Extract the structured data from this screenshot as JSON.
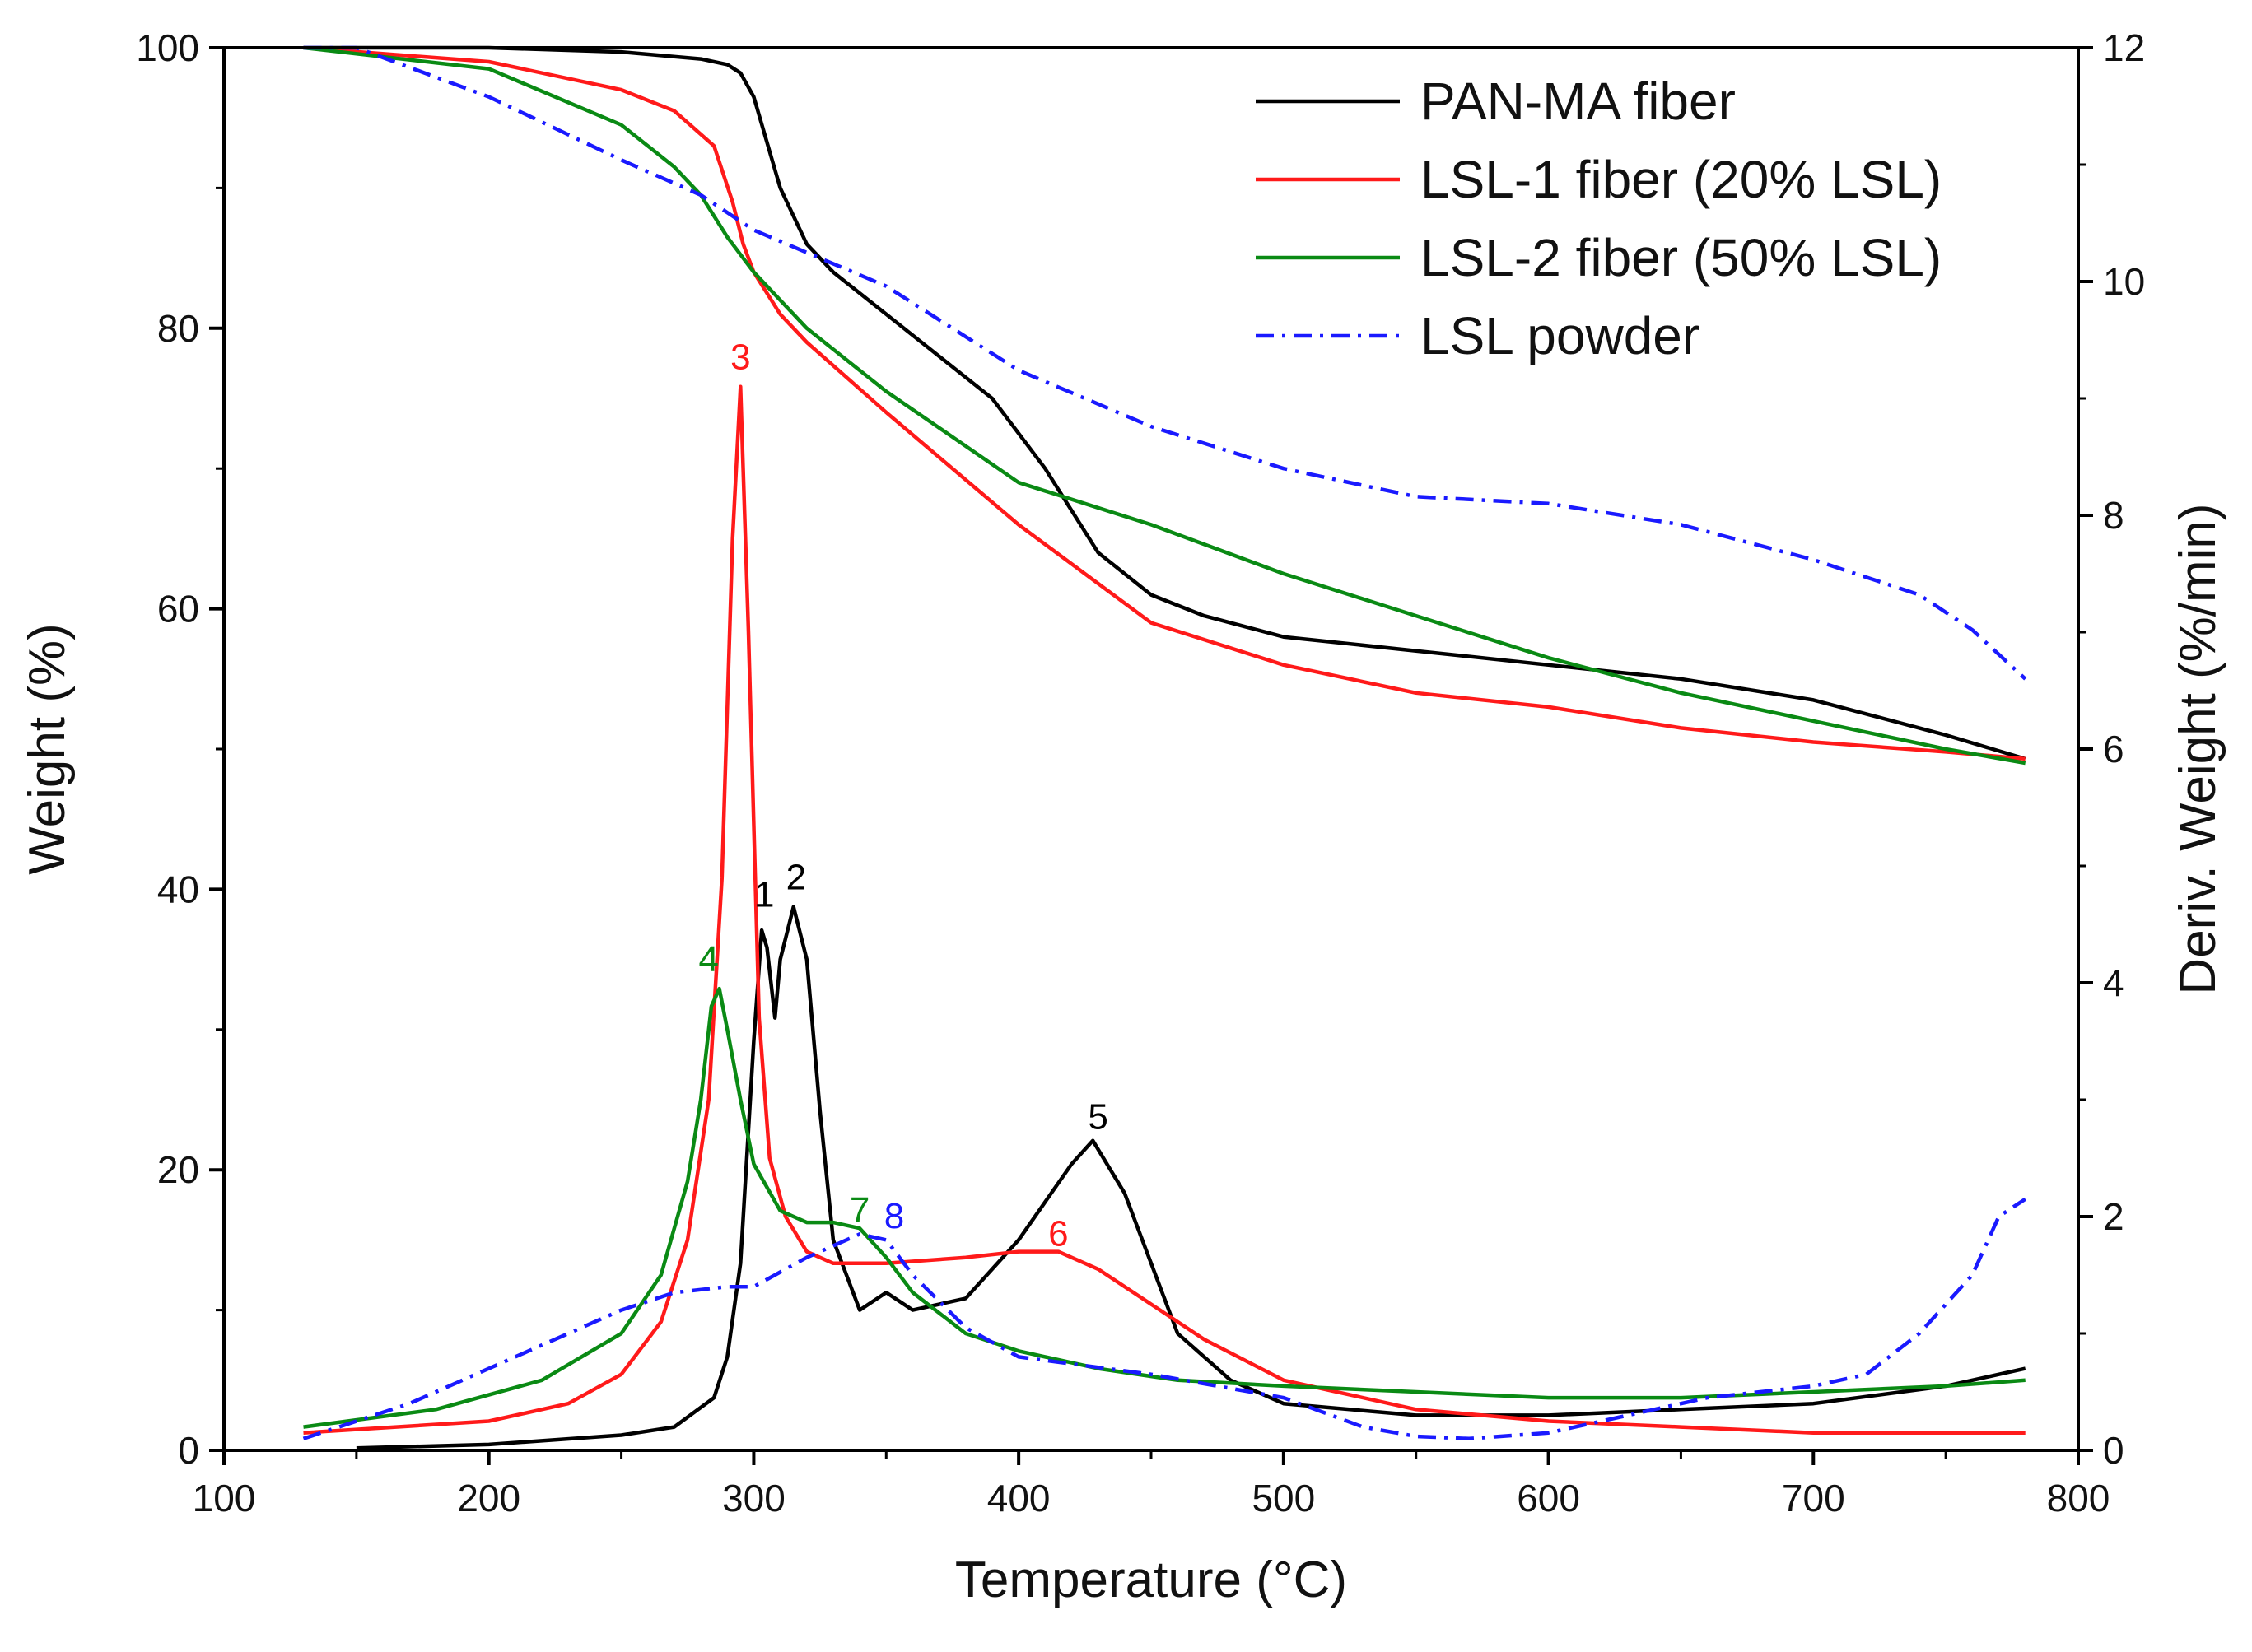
{
  "colors": {
    "pan_ma": "#000000",
    "lsl1": "#ff1a1a",
    "lsl2": "#0a8a14",
    "lsl_powder": "#1a1aff"
  },
  "chart_data": {
    "type": "line",
    "title": "",
    "xlabel": "Temperature (°C)",
    "ylabel_left": "Weight (%)",
    "ylabel_right": "Deriv. Weight (%/min)",
    "xlim": [
      100,
      800
    ],
    "ylim_left": [
      0,
      100
    ],
    "ylim_right": [
      0,
      12
    ],
    "x_ticks": [
      "100",
      "200",
      "300",
      "400",
      "500",
      "600",
      "700",
      "800"
    ],
    "y_left_ticks": [
      "0",
      "20",
      "40",
      "60",
      "80",
      "100"
    ],
    "y_right_ticks": [
      "0",
      "2",
      "4",
      "6",
      "8",
      "10",
      "12"
    ],
    "grid": false,
    "legend_position": "top-right",
    "legend": [
      {
        "key": "pan_ma",
        "label": "PAN-MA fiber",
        "style": "solid"
      },
      {
        "key": "lsl1",
        "label": "LSL-1 fiber (20% LSL)",
        "style": "solid"
      },
      {
        "key": "lsl2",
        "label": "LSL-2 fiber (50% LSL)",
        "style": "solid"
      },
      {
        "key": "lsl_powder",
        "label": "LSL powder",
        "style": "dashdot"
      }
    ],
    "weight_series": [
      {
        "key": "pan_ma",
        "axis": "left",
        "style": "solid",
        "x": [
          130,
          200,
          250,
          280,
          290,
          295,
          300,
          310,
          320,
          330,
          350,
          370,
          390,
          410,
          430,
          450,
          470,
          500,
          550,
          600,
          650,
          700,
          750,
          780
        ],
        "y": [
          100,
          100,
          99.7,
          99.2,
          98.8,
          98.2,
          96.5,
          90,
          86,
          84,
          81,
          78,
          75,
          70,
          64,
          61,
          59.5,
          58,
          57,
          56,
          55,
          53.5,
          51,
          49.3
        ]
      },
      {
        "key": "lsl1",
        "axis": "left",
        "style": "solid",
        "x": [
          130,
          200,
          250,
          270,
          285,
          292,
          296,
          300,
          310,
          320,
          350,
          400,
          450,
          500,
          550,
          600,
          650,
          700,
          750,
          780
        ],
        "y": [
          100,
          99,
          97,
          95.5,
          93,
          89,
          86,
          84,
          81,
          79,
          74,
          66,
          59,
          56,
          54,
          53,
          51.5,
          50.5,
          49.8,
          49.3
        ]
      },
      {
        "key": "lsl2",
        "axis": "left",
        "style": "solid",
        "x": [
          130,
          200,
          250,
          270,
          280,
          290,
          300,
          320,
          350,
          400,
          450,
          500,
          550,
          600,
          650,
          700,
          750,
          780
        ],
        "y": [
          100,
          98.5,
          94.5,
          91.5,
          89.5,
          86.5,
          84,
          80,
          75.5,
          69,
          66,
          62.5,
          59.5,
          56.5,
          54,
          52,
          50,
          49
        ]
      },
      {
        "key": "lsl_powder",
        "axis": "left",
        "style": "dashdot",
        "x": [
          130,
          150,
          200,
          250,
          280,
          300,
          350,
          400,
          450,
          500,
          550,
          600,
          650,
          700,
          740,
          760,
          780
        ],
        "y": [
          100,
          100,
          96.5,
          92,
          89.5,
          87,
          83,
          77,
          73,
          70,
          68,
          67.5,
          66,
          63.5,
          61,
          58.5,
          55
        ]
      }
    ],
    "derivative_series": [
      {
        "key": "pan_ma",
        "axis": "right",
        "style": "solid",
        "x": [
          150,
          200,
          250,
          270,
          285,
          290,
          295,
          300,
          303,
          305,
          308,
          310,
          315,
          320,
          325,
          330,
          340,
          350,
          360,
          380,
          400,
          420,
          428,
          440,
          460,
          480,
          500,
          550,
          600,
          650,
          700,
          750,
          780
        ],
        "y": [
          0.02,
          0.05,
          0.13,
          0.2,
          0.45,
          0.8,
          1.6,
          3.5,
          4.45,
          4.3,
          3.7,
          4.2,
          4.65,
          4.2,
          2.9,
          1.8,
          1.2,
          1.35,
          1.2,
          1.3,
          1.8,
          2.45,
          2.65,
          2.2,
          1.0,
          0.6,
          0.4,
          0.3,
          0.3,
          0.35,
          0.4,
          0.55,
          0.7
        ]
      },
      {
        "key": "lsl1",
        "axis": "right",
        "style": "solid",
        "x": [
          130,
          200,
          230,
          250,
          265,
          275,
          283,
          288,
          292,
          295,
          298,
          302,
          306,
          312,
          320,
          330,
          350,
          380,
          400,
          415,
          430,
          450,
          470,
          500,
          550,
          600,
          650,
          700,
          780
        ],
        "y": [
          0.15,
          0.25,
          0.4,
          0.65,
          1.1,
          1.8,
          3.0,
          4.9,
          7.8,
          9.1,
          7.0,
          3.7,
          2.5,
          2.0,
          1.7,
          1.6,
          1.6,
          1.65,
          1.7,
          1.7,
          1.55,
          1.25,
          0.95,
          0.6,
          0.35,
          0.25,
          0.2,
          0.15,
          0.15
        ]
      },
      {
        "key": "lsl2",
        "axis": "right",
        "style": "solid",
        "x": [
          130,
          180,
          220,
          250,
          265,
          275,
          280,
          284,
          287,
          290,
          295,
          300,
          310,
          320,
          330,
          340,
          350,
          360,
          380,
          400,
          430,
          460,
          500,
          550,
          600,
          650,
          700,
          750,
          780
        ],
        "y": [
          0.2,
          0.35,
          0.6,
          1.0,
          1.5,
          2.3,
          3.0,
          3.8,
          3.95,
          3.6,
          3.0,
          2.45,
          2.05,
          1.95,
          1.95,
          1.9,
          1.65,
          1.35,
          1.0,
          0.85,
          0.7,
          0.6,
          0.55,
          0.5,
          0.45,
          0.45,
          0.5,
          0.55,
          0.6
        ]
      },
      {
        "key": "lsl_powder",
        "axis": "right",
        "style": "dashdot",
        "x": [
          130,
          170,
          200,
          230,
          250,
          270,
          290,
          300,
          320,
          340,
          350,
          360,
          380,
          400,
          450,
          500,
          530,
          550,
          570,
          600,
          630,
          660,
          700,
          720,
          740,
          760,
          770,
          780
        ],
        "y": [
          0.1,
          0.4,
          0.7,
          1.0,
          1.2,
          1.35,
          1.4,
          1.4,
          1.65,
          1.85,
          1.8,
          1.5,
          1.05,
          0.8,
          0.65,
          0.45,
          0.2,
          0.12,
          0.1,
          0.15,
          0.3,
          0.45,
          0.55,
          0.65,
          1.0,
          1.5,
          2.0,
          2.15
        ]
      }
    ],
    "peak_labels": [
      {
        "text": "1",
        "x": 304,
        "y_right": 4.65,
        "color_key": "pan_ma"
      },
      {
        "text": "2",
        "x": 316,
        "y_right": 4.8,
        "color_key": "pan_ma"
      },
      {
        "text": "3",
        "x": 295,
        "y_right": 9.25,
        "color_key": "lsl1"
      },
      {
        "text": "4",
        "x": 283,
        "y_right": 4.1,
        "color_key": "lsl2"
      },
      {
        "text": "5",
        "x": 430,
        "y_right": 2.75,
        "color_key": "pan_ma"
      },
      {
        "text": "6",
        "x": 415,
        "y_right": 1.75,
        "color_key": "lsl1"
      },
      {
        "text": "7",
        "x": 340,
        "y_right": 1.95,
        "color_key": "lsl2"
      },
      {
        "text": "8",
        "x": 353,
        "y_right": 1.9,
        "color_key": "lsl_powder"
      }
    ]
  }
}
